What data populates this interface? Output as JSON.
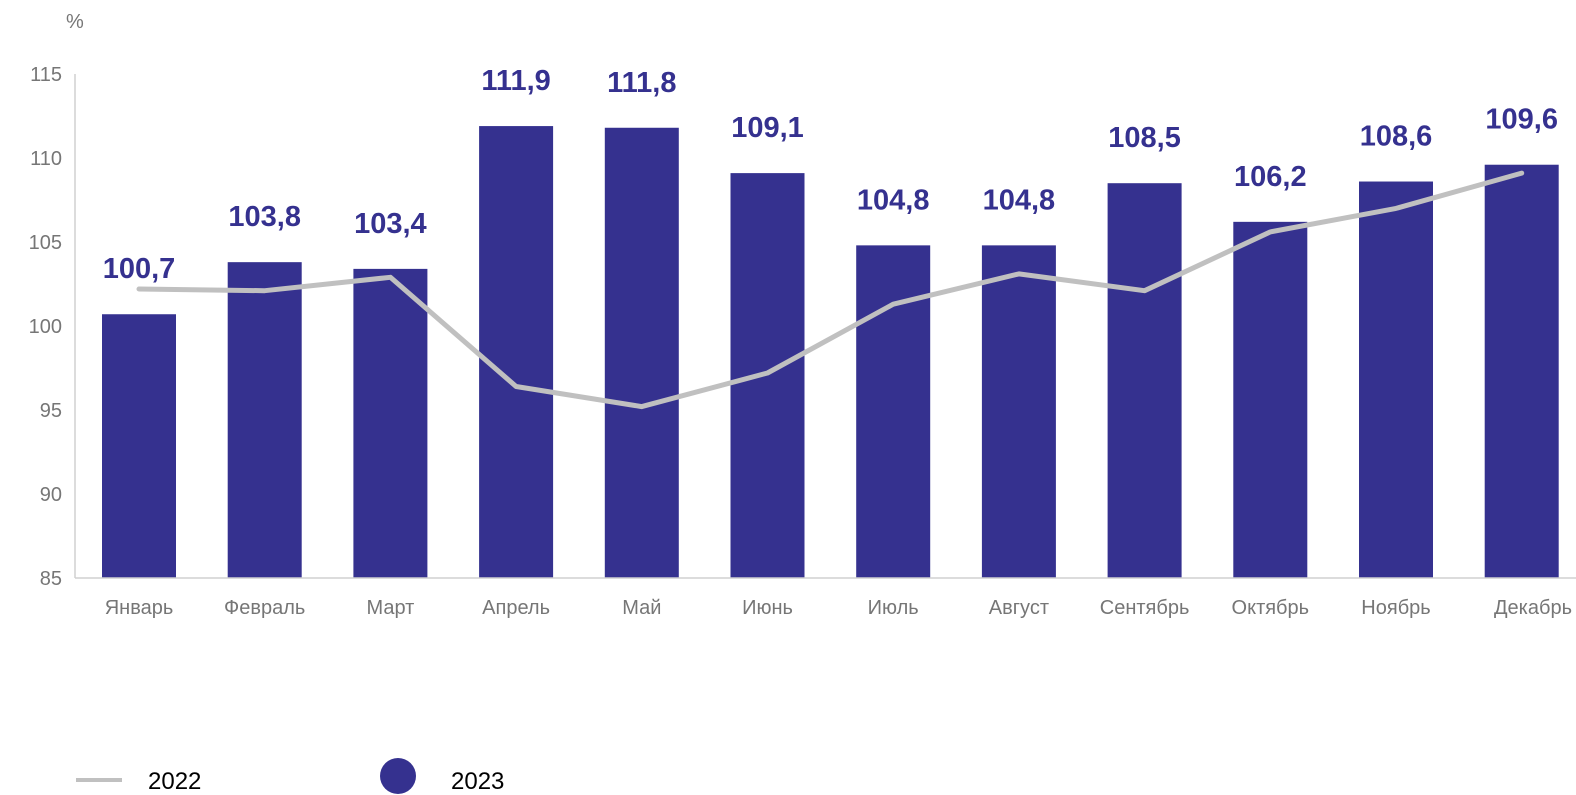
{
  "chart_data": {
    "type": "bar",
    "unit_label": "%",
    "categories": [
      "Январь",
      "Февраль",
      "Март",
      "Апрель",
      "Май",
      "Июнь",
      "Июль",
      "Август",
      "Сентябрь",
      "Октябрь",
      "Ноябрь",
      "Декабрь"
    ],
    "ylim": [
      85,
      115
    ],
    "yticks": [
      "85",
      "90",
      "95",
      "100",
      "105",
      "110",
      "115"
    ],
    "grid": false,
    "legend_position": "bottom-left",
    "series": [
      {
        "name": "2023",
        "type": "bar",
        "color": "#35318f",
        "values": [
          100.7,
          103.8,
          103.4,
          111.9,
          111.8,
          109.1,
          104.8,
          104.8,
          108.5,
          106.2,
          108.6,
          109.6
        ],
        "labels": [
          "100,7",
          "103,8",
          "103,4",
          "111,9",
          "111,8",
          "109,1",
          "104,8",
          "104,8",
          "108,5",
          "106,2",
          "108,6",
          "109,6"
        ]
      },
      {
        "name": "2022",
        "type": "line",
        "color": "#c0c0c0",
        "values": [
          102.2,
          102.1,
          102.9,
          96.4,
          95.2,
          97.2,
          101.3,
          103.1,
          102.1,
          105.6,
          107.0,
          109.1
        ]
      }
    ]
  }
}
